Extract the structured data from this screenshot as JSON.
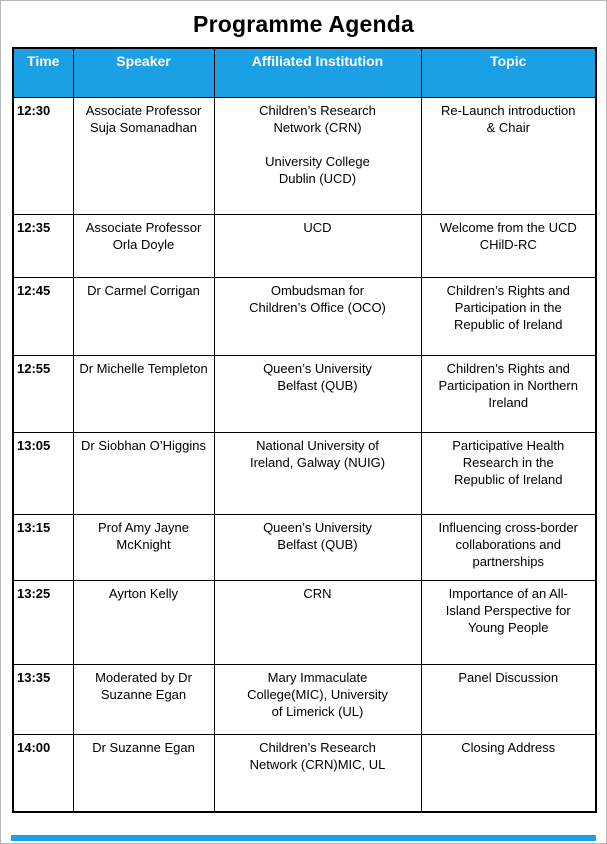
{
  "page": {
    "title": "Programme Agenda"
  },
  "colors": {
    "header_background": "#1BA0E6",
    "header_text": "#FFFFFF",
    "grid_border": "#000000",
    "page_edge": "#B7B7B7"
  },
  "table": {
    "headers": [
      "Time",
      "Speaker",
      "Affiliated Institution",
      "Topic"
    ],
    "rows": [
      {
        "time": "12:30",
        "speaker": "Associate Professor Suja Somanadhan",
        "institution": "Children’s Research Network (CRN) University College Dublin (UCD)",
        "topic": "Re-Launch introduction & Chair",
        "speaker_lines": [
          "Associate Professor",
          "Suja Somanadhan"
        ],
        "institution_lines": [
          "Children’s Research",
          "Network (CRN)",
          "",
          "University College",
          "Dublin (UCD)"
        ],
        "topic_lines": [
          "Re-Launch introduction",
          "& Chair"
        ]
      },
      {
        "time": "12:35",
        "speaker": "Associate Professor Orla Doyle",
        "institution": "UCD",
        "topic": "Welcome from the UCD CHilD-RC",
        "speaker_lines": [
          "Associate Professor",
          "Orla Doyle"
        ],
        "institution_lines": [
          "UCD"
        ],
        "topic_lines": [
          "Welcome from the UCD",
          "CHilD-RC"
        ]
      },
      {
        "time": "12:45",
        "speaker": "Dr Carmel Corrigan",
        "institution": "Ombudsman for Children’s Office (OCO)",
        "topic": "Children’s Rights and Participation in the Republic of Ireland",
        "speaker_lines": [
          "Dr Carmel Corrigan"
        ],
        "institution_lines": [
          "Ombudsman for",
          "Children’s Office (OCO)"
        ],
        "topic_lines": [
          "Children’s Rights and",
          "Participation in the",
          "Republic of Ireland"
        ]
      },
      {
        "time": "12:55",
        "speaker": "Dr Michelle Templeton",
        "institution": "Queen’s University Belfast (QUB)",
        "topic": "Children’s Rights and Participation in Northern Ireland",
        "speaker_lines": [
          "Dr Michelle Templeton"
        ],
        "institution_lines": [
          "Queen’s University",
          "Belfast (QUB)"
        ],
        "topic_lines": [
          "Children’s Rights and",
          "Participation in Northern",
          "Ireland"
        ]
      },
      {
        "time": "13:05",
        "speaker": "Dr Siobhan O’Higgins",
        "institution": "National University of Ireland, Galway (NUIG)",
        "topic": "Participative Health Research in the Republic of Ireland",
        "speaker_lines": [
          "Dr Siobhan O’Higgins"
        ],
        "institution_lines": [
          "National University of",
          "Ireland, Galway (NUIG)"
        ],
        "topic_lines": [
          "Participative Health",
          "Research in the",
          "Republic of Ireland"
        ]
      },
      {
        "time": "13:15",
        "speaker": "Prof Amy Jayne McKnight",
        "institution": "Queen’s University Belfast (QUB)",
        "topic": "Influencing cross-border collaborations and partnerships",
        "speaker_lines": [
          "Prof Amy Jayne",
          "McKnight"
        ],
        "institution_lines": [
          "Queen’s University",
          "Belfast (QUB)"
        ],
        "topic_lines": [
          "Influencing cross-border",
          "collaborations and",
          "partnerships"
        ]
      },
      {
        "time": "13:25",
        "speaker": "Ayrton Kelly",
        "institution": "CRN",
        "topic": "Importance of an All-Island Perspective for Young People",
        "speaker_lines": [
          "Ayrton Kelly"
        ],
        "institution_lines": [
          "CRN"
        ],
        "topic_lines": [
          "Importance of an All-",
          "Island Perspective for",
          "Young People"
        ]
      },
      {
        "time": "13:35",
        "speaker": "Moderated by Dr Suzanne Egan",
        "institution": "Mary Immaculate College(MIC), University of Limerick (UL)",
        "topic": "Panel Discussion",
        "speaker_lines": [
          "Moderated by Dr",
          "Suzanne Egan"
        ],
        "institution_lines": [
          "Mary Immaculate",
          "College(MIC), University",
          "of Limerick (UL)"
        ],
        "topic_lines": [
          "Panel Discussion"
        ]
      },
      {
        "time": "14:00",
        "speaker": "Dr Suzanne Egan",
        "institution": "Children’s Research Network (CRN)MIC, UL",
        "topic": "Closing Address",
        "speaker_lines": [
          "Dr Suzanne Egan"
        ],
        "institution_lines": [
          "Children’s Research",
          "Network (CRN)MIC, UL"
        ],
        "topic_lines": [
          "Closing Address"
        ]
      }
    ]
  }
}
